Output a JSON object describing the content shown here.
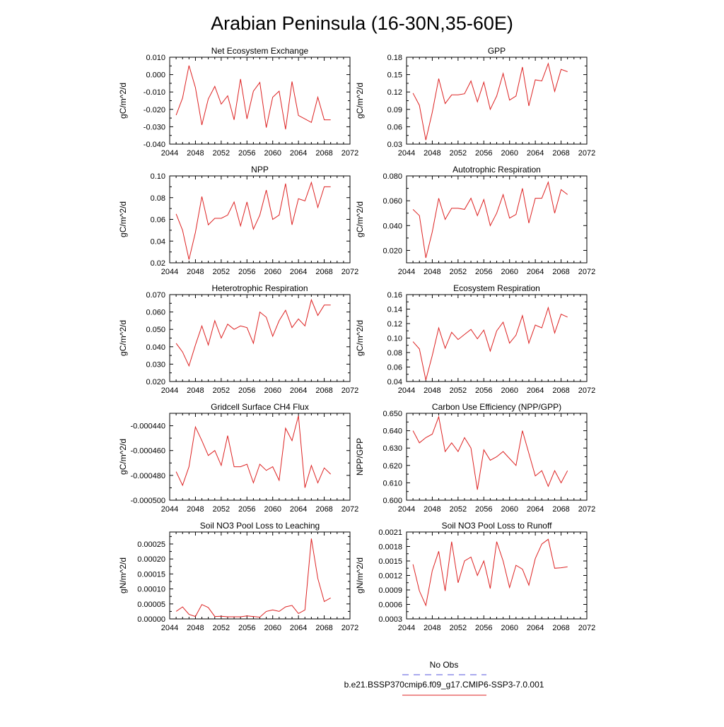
{
  "page": {
    "title": "Arabian Peninsula (16-30N,35-60E)",
    "legend": {
      "obs_label": "No Obs",
      "obs_color": "#5555dd",
      "model_label": "b.e21.BSSP370cmip6.f09_g17.CMIP6-SSP3-7.0.001",
      "model_color": "#dd2222"
    }
  },
  "chart_data": [
    {
      "type": "line",
      "title": "Net Ecosystem Exchange",
      "ylabel": "gC/m^2/d",
      "xlim": [
        2044,
        2072
      ],
      "xticks": [
        "2044",
        "2048",
        "2052",
        "2056",
        "2060",
        "2064",
        "2068",
        "2072"
      ],
      "ylim": [
        -0.04,
        0.01
      ],
      "yticks": [
        "-0.040",
        "-0.030",
        "-0.020",
        "-0.010",
        "0.000",
        "0.010"
      ],
      "x": [
        2045,
        2046,
        2047,
        2048,
        2049,
        2050,
        2051,
        2052,
        2053,
        2054,
        2055,
        2056,
        2057,
        2058,
        2059,
        2060,
        2061,
        2062,
        2063,
        2064,
        2065,
        2066,
        2067,
        2068,
        2069
      ],
      "series": [
        {
          "name": "b.e21.BSSP370cmip6.f09_g17.CMIP6-SSP3-7.0.001",
          "values": [
            -0.0233,
            -0.0135,
            0.0052,
            -0.0075,
            -0.029,
            -0.014,
            -0.0068,
            -0.017,
            -0.0122,
            -0.026,
            -0.0025,
            -0.0255,
            -0.0095,
            -0.0045,
            -0.0305,
            -0.013,
            -0.0095,
            -0.0315,
            -0.004,
            -0.0235,
            -0.0255,
            -0.0275,
            -0.013,
            -0.026,
            -0.026
          ]
        }
      ]
    },
    {
      "type": "line",
      "title": "GPP",
      "ylabel": "gC/m^2/d",
      "xlim": [
        2044,
        2072
      ],
      "xticks": [
        "2044",
        "2048",
        "2052",
        "2056",
        "2060",
        "2064",
        "2068",
        "2072"
      ],
      "ylim": [
        0.03,
        0.18
      ],
      "yticks": [
        "0.03",
        "0.06",
        "0.09",
        "0.12",
        "0.15",
        "0.18"
      ],
      "x": [
        2045,
        2046,
        2047,
        2048,
        2049,
        2050,
        2051,
        2052,
        2053,
        2054,
        2055,
        2056,
        2057,
        2058,
        2059,
        2060,
        2061,
        2062,
        2063,
        2064,
        2065,
        2066,
        2067,
        2068,
        2069
      ],
      "series": [
        {
          "name": "b.e21.BSSP370cmip6.f09_g17.CMIP6-SSP3-7.0.001",
          "values": [
            0.118,
            0.097,
            0.037,
            0.085,
            0.143,
            0.1,
            0.115,
            0.115,
            0.117,
            0.139,
            0.103,
            0.137,
            0.09,
            0.113,
            0.152,
            0.106,
            0.113,
            0.163,
            0.096,
            0.141,
            0.139,
            0.169,
            0.121,
            0.159,
            0.155
          ]
        }
      ]
    },
    {
      "type": "line",
      "title": "NPP",
      "ylabel": "gC/m^2/d",
      "xlim": [
        2044,
        2072
      ],
      "xticks": [
        "2044",
        "2048",
        "2052",
        "2056",
        "2060",
        "2064",
        "2068",
        "2072"
      ],
      "ylim": [
        0.02,
        0.1
      ],
      "yticks": [
        "0.02",
        "0.04",
        "0.06",
        "0.08",
        "0.10"
      ],
      "x": [
        2045,
        2046,
        2047,
        2048,
        2049,
        2050,
        2051,
        2052,
        2053,
        2054,
        2055,
        2056,
        2057,
        2058,
        2059,
        2060,
        2061,
        2062,
        2063,
        2064,
        2065,
        2066,
        2067,
        2068,
        2069
      ],
      "series": [
        {
          "name": "b.e21.BSSP370cmip6.f09_g17.CMIP6-SSP3-7.0.001",
          "values": [
            0.065,
            0.05,
            0.023,
            0.048,
            0.081,
            0.055,
            0.061,
            0.061,
            0.064,
            0.076,
            0.054,
            0.076,
            0.051,
            0.064,
            0.087,
            0.06,
            0.064,
            0.093,
            0.055,
            0.079,
            0.077,
            0.094,
            0.071,
            0.09,
            0.09
          ]
        }
      ]
    },
    {
      "type": "line",
      "title": "Autotrophic Respiration",
      "ylabel": "gC/m^2/d",
      "xlim": [
        2044,
        2072
      ],
      "xticks": [
        "2044",
        "2048",
        "2052",
        "2056",
        "2060",
        "2064",
        "2068",
        "2072"
      ],
      "ylim": [
        0.01,
        0.08
      ],
      "yticks": [
        "0.020",
        "0.040",
        "0.060",
        "0.080"
      ],
      "x": [
        2045,
        2046,
        2047,
        2048,
        2049,
        2050,
        2051,
        2052,
        2053,
        2054,
        2055,
        2056,
        2057,
        2058,
        2059,
        2060,
        2061,
        2062,
        2063,
        2064,
        2065,
        2066,
        2067,
        2068,
        2069
      ],
      "series": [
        {
          "name": "b.e21.BSSP370cmip6.f09_g17.CMIP6-SSP3-7.0.001",
          "values": [
            0.053,
            0.048,
            0.014,
            0.035,
            0.062,
            0.045,
            0.054,
            0.054,
            0.053,
            0.062,
            0.048,
            0.061,
            0.04,
            0.05,
            0.065,
            0.046,
            0.049,
            0.07,
            0.042,
            0.062,
            0.062,
            0.075,
            0.05,
            0.069,
            0.065
          ]
        }
      ]
    },
    {
      "type": "line",
      "title": "Heterotrophic Respiration",
      "ylabel": "gC/m^2/d",
      "xlim": [
        2044,
        2072
      ],
      "xticks": [
        "2044",
        "2048",
        "2052",
        "2056",
        "2060",
        "2064",
        "2068",
        "2072"
      ],
      "ylim": [
        0.02,
        0.07
      ],
      "yticks": [
        "0.020",
        "0.030",
        "0.040",
        "0.050",
        "0.060",
        "0.070"
      ],
      "x": [
        2045,
        2046,
        2047,
        2048,
        2049,
        2050,
        2051,
        2052,
        2053,
        2054,
        2055,
        2056,
        2057,
        2058,
        2059,
        2060,
        2061,
        2062,
        2063,
        2064,
        2065,
        2066,
        2067,
        2068,
        2069
      ],
      "series": [
        {
          "name": "b.e21.BSSP370cmip6.f09_g17.CMIP6-SSP3-7.0.001",
          "values": [
            0.042,
            0.037,
            0.029,
            0.041,
            0.052,
            0.041,
            0.055,
            0.045,
            0.053,
            0.05,
            0.052,
            0.051,
            0.042,
            0.06,
            0.057,
            0.046,
            0.055,
            0.061,
            0.051,
            0.056,
            0.052,
            0.067,
            0.058,
            0.064,
            0.064
          ]
        }
      ]
    },
    {
      "type": "line",
      "title": "Ecosystem Respiration",
      "ylabel": "gC/m^2/d",
      "xlim": [
        2044,
        2072
      ],
      "xticks": [
        "2044",
        "2048",
        "2052",
        "2056",
        "2060",
        "2064",
        "2068",
        "2072"
      ],
      "ylim": [
        0.04,
        0.16
      ],
      "yticks": [
        "0.04",
        "0.06",
        "0.08",
        "0.10",
        "0.12",
        "0.14",
        "0.16"
      ],
      "x": [
        2045,
        2046,
        2047,
        2048,
        2049,
        2050,
        2051,
        2052,
        2053,
        2054,
        2055,
        2056,
        2057,
        2058,
        2059,
        2060,
        2061,
        2062,
        2063,
        2064,
        2065,
        2066,
        2067,
        2068,
        2069
      ],
      "series": [
        {
          "name": "b.e21.BSSP370cmip6.f09_g17.CMIP6-SSP3-7.0.001",
          "values": [
            0.095,
            0.085,
            0.042,
            0.076,
            0.114,
            0.086,
            0.108,
            0.098,
            0.105,
            0.112,
            0.099,
            0.111,
            0.082,
            0.11,
            0.122,
            0.093,
            0.104,
            0.131,
            0.093,
            0.118,
            0.114,
            0.142,
            0.107,
            0.133,
            0.129
          ]
        }
      ]
    },
    {
      "type": "line",
      "title": "Gridcell Surface CH4 Flux",
      "ylabel": "gC/m^2/d",
      "xlim": [
        2044,
        2072
      ],
      "xticks": [
        "2044",
        "2048",
        "2052",
        "2056",
        "2060",
        "2064",
        "2068",
        "2072"
      ],
      "ylim": [
        -0.0005,
        -0.00043
      ],
      "yticks": [
        "-0.000500",
        "-0.000480",
        "-0.000460",
        "-0.000440"
      ],
      "x": [
        2045,
        2046,
        2047,
        2048,
        2049,
        2050,
        2051,
        2052,
        2053,
        2054,
        2055,
        2056,
        2057,
        2058,
        2059,
        2060,
        2061,
        2062,
        2063,
        2064,
        2065,
        2066,
        2067,
        2068,
        2069
      ],
      "series": [
        {
          "name": "b.e21.BSSP370cmip6.f09_g17.CMIP6-SSP3-7.0.001",
          "values": [
            -0.000477,
            -0.000488,
            -0.000473,
            -0.000441,
            -0.000452,
            -0.000464,
            -0.00046,
            -0.000472,
            -0.000448,
            -0.000473,
            -0.000473,
            -0.000471,
            -0.000486,
            -0.000471,
            -0.000476,
            -0.000473,
            -0.000484,
            -0.000442,
            -0.000452,
            -0.000432,
            -0.00049,
            -0.000472,
            -0.000486,
            -0.000474,
            -0.000479
          ]
        }
      ]
    },
    {
      "type": "line",
      "title": "Carbon Use Efficiency (NPP/GPP)",
      "ylabel": "NPP/GPP",
      "xlim": [
        2044,
        2072
      ],
      "xticks": [
        "2044",
        "2048",
        "2052",
        "2056",
        "2060",
        "2064",
        "2068",
        "2072"
      ],
      "ylim": [
        0.6,
        0.65
      ],
      "yticks": [
        "0.600",
        "0.610",
        "0.620",
        "0.630",
        "0.640",
        "0.650"
      ],
      "x": [
        2045,
        2046,
        2047,
        2048,
        2049,
        2050,
        2051,
        2052,
        2053,
        2054,
        2055,
        2056,
        2057,
        2058,
        2059,
        2060,
        2061,
        2062,
        2063,
        2064,
        2065,
        2066,
        2067,
        2068,
        2069
      ],
      "series": [
        {
          "name": "b.e21.BSSP370cmip6.f09_g17.CMIP6-SSP3-7.0.001",
          "values": [
            0.64,
            0.633,
            0.636,
            0.638,
            0.648,
            0.628,
            0.633,
            0.628,
            0.636,
            0.63,
            0.606,
            0.629,
            0.623,
            0.625,
            0.628,
            0.624,
            0.62,
            0.64,
            0.627,
            0.614,
            0.617,
            0.608,
            0.617,
            0.61,
            0.617
          ]
        }
      ]
    },
    {
      "type": "line",
      "title": "Soil NO3 Pool Loss to Leaching",
      "ylabel": "gN/m^2/d",
      "xlim": [
        2044,
        2072
      ],
      "xticks": [
        "2044",
        "2048",
        "2052",
        "2056",
        "2060",
        "2064",
        "2068",
        "2072"
      ],
      "ylim": [
        0,
        0.00029
      ],
      "yticks": [
        "0.00000",
        "0.00005",
        "0.00010",
        "0.00015",
        "0.00020",
        "0.00025"
      ],
      "x": [
        2045,
        2046,
        2047,
        2048,
        2049,
        2050,
        2051,
        2052,
        2053,
        2054,
        2055,
        2056,
        2057,
        2058,
        2059,
        2060,
        2061,
        2062,
        2063,
        2064,
        2065,
        2066,
        2067,
        2068,
        2069
      ],
      "series": [
        {
          "name": "b.e21.BSSP370cmip6.f09_g17.CMIP6-SSP3-7.0.001",
          "values": [
            2.5e-05,
            4e-05,
            1.5e-05,
            8e-06,
            4.8e-05,
            3.8e-05,
            8e-06,
            9e-06,
            7e-06,
            7e-06,
            7e-06,
            1e-05,
            8e-06,
            6e-06,
            2.5e-05,
            3e-05,
            2.5e-05,
            4e-05,
            4.5e-05,
            1.8e-05,
            3e-05,
            0.000268,
            0.000135,
            5.8e-05,
            7e-05
          ]
        }
      ]
    },
    {
      "type": "line",
      "title": "Soil NO3 Pool Loss to Runoff",
      "ylabel": "gN/m^2/d",
      "xlim": [
        2044,
        2072
      ],
      "xticks": [
        "2044",
        "2048",
        "2052",
        "2056",
        "2060",
        "2064",
        "2068",
        "2072"
      ],
      "ylim": [
        0.0003,
        0.0021
      ],
      "yticks": [
        "0.0003",
        "0.0006",
        "0.0009",
        "0.0012",
        "0.0015",
        "0.0018",
        "0.0021"
      ],
      "x": [
        2045,
        2046,
        2047,
        2048,
        2049,
        2050,
        2051,
        2052,
        2053,
        2054,
        2055,
        2056,
        2057,
        2058,
        2059,
        2060,
        2061,
        2062,
        2063,
        2064,
        2065,
        2066,
        2067,
        2068,
        2069
      ],
      "series": [
        {
          "name": "b.e21.BSSP370cmip6.f09_g17.CMIP6-SSP3-7.0.001",
          "values": [
            0.00143,
            0.00088,
            0.00058,
            0.0013,
            0.0017,
            0.00088,
            0.0019,
            0.00105,
            0.0015,
            0.00158,
            0.0012,
            0.0015,
            0.00093,
            0.0019,
            0.0015,
            0.00095,
            0.00141,
            0.00133,
            0.001,
            0.00155,
            0.00185,
            0.00195,
            0.00135,
            0.00136,
            0.00138
          ]
        }
      ]
    }
  ]
}
